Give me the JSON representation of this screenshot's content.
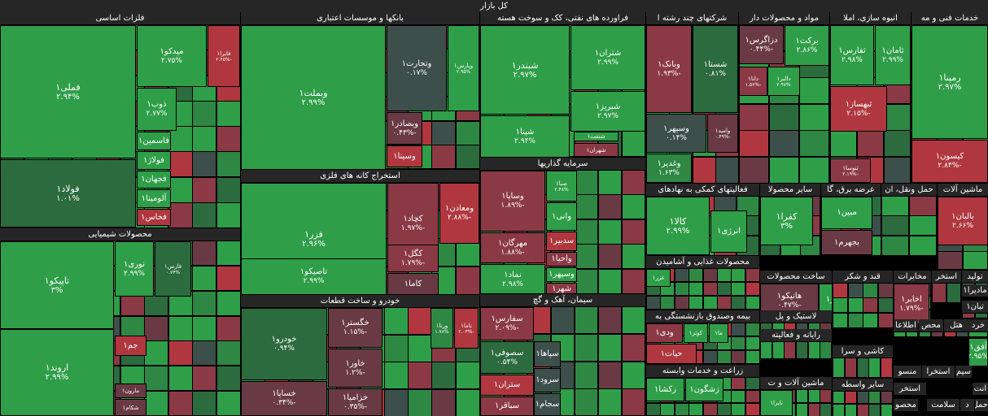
{
  "title": "کل بازار",
  "chart_data": {
    "type": "treemap",
    "colors": {
      "g3": "#2f9e48",
      "g2": "#2e8743",
      "g1": "#2c6b3e",
      "n0": "#3d4f4a",
      "r1": "#6a3a44",
      "r2": "#8b3a45",
      "r3": "#b0373f"
    },
    "sectors": [
      {
        "name": "خدمات فنی و مه",
        "tiles": [
          {
            "name": "رمپنا۱",
            "value": "۲.۹۷%",
            "c": "g3"
          },
          {
            "name": "کیسون۱",
            "value": "-۲.۸۴%",
            "c": "r3"
          }
        ]
      },
      {
        "name": "انبوه سازی، املا",
        "tiles": [
          {
            "name": "ثامان۱",
            "value": "۲.۹۹%",
            "c": "g3"
          },
          {
            "name": "ثفارس۱",
            "value": "۲.۹۸%",
            "c": "g3"
          },
          {
            "name": "ثبهساز۱",
            "value": "-۲.۱۵%",
            "c": "r3"
          },
          {
            "name": "ثنوسا۱",
            "value": "-۲.۱۹%",
            "c": "r2"
          }
        ]
      },
      {
        "name": "مواد و محصولات دار",
        "tiles": [
          {
            "name": "برکت۱",
            "value": "۲.۸۶%",
            "c": "g3"
          },
          {
            "name": "دزاگرس۱",
            "value": "-۰.۴۴%",
            "c": "r1"
          },
          {
            "name": "دالبر۱",
            "value": "۲.۹۷%",
            "c": "g3"
          },
          {
            "name": "دانا۱",
            "value": "-۱.۵۶%",
            "c": "r2"
          }
        ]
      },
      {
        "name": "شرکتهای چند رشته ا",
        "tiles": [
          {
            "name": "وبانک۱",
            "value": "-۱.۹۳%",
            "c": "r2"
          },
          {
            "name": "شستا۱",
            "value": "۰.۸۱%",
            "c": "g1"
          },
          {
            "name": "وسپهر۱",
            "value": "۰.۱۴%",
            "c": "n0"
          },
          {
            "name": "وامید۱",
            "value": "-۰.۴۹%",
            "c": "r1"
          },
          {
            "name": "وغدیر۱",
            "value": "۱.۶۳%",
            "c": "g2"
          }
        ]
      },
      {
        "name": "فراورده های نفتی، کک و سوخت هسته",
        "tiles": [
          {
            "name": "شبندر۱",
            "value": "۲.۹۷%",
            "c": "g3"
          },
          {
            "name": "شتران۱",
            "value": "۲.۹۹%",
            "c": "g3"
          },
          {
            "name": "شپنا۱",
            "value": "۲.۹۴%",
            "c": "g3"
          },
          {
            "name": "شبریز۱",
            "value": "۲.۹۷%",
            "c": "g3"
          },
          {
            "name": "شنفت۱",
            "value": "",
            "c": "g3"
          },
          {
            "name": "شهران۱",
            "value": "",
            "c": "r2"
          }
        ]
      },
      {
        "name": "بانکها و موسسات اعتباری",
        "tiles": [
          {
            "name": "وبملت۱",
            "value": "۲.۹۹%",
            "c": "g3"
          },
          {
            "name": "وتجارت۱",
            "value": "۰.۱۷%",
            "c": "n0"
          },
          {
            "name": "وپارس۱",
            "value": "۲.۹۵%",
            "c": "g3"
          },
          {
            "name": "وبصادر۱",
            "value": "-۰.۴۳%",
            "c": "r1"
          },
          {
            "name": "وسینا۱",
            "value": "",
            "c": "r3"
          }
        ]
      },
      {
        "name": "فلزات اساسی",
        "tiles": [
          {
            "name": "فملی۱",
            "value": "۲.۹۴%",
            "c": "g3"
          },
          {
            "name": "میدکو۱",
            "value": "۲.۷۵%",
            "c": "g3"
          },
          {
            "name": "فایرا۱",
            "value": "-۲.۴۵%",
            "c": "r3"
          },
          {
            "name": "ذوب۱",
            "value": "۲.۷۷%",
            "c": "g3"
          },
          {
            "name": "فاسمین۱",
            "value": "",
            "c": "g3"
          },
          {
            "name": "فولاژ۱",
            "value": "",
            "c": "g3"
          },
          {
            "name": "فجهان۱",
            "value": "",
            "c": "g3"
          },
          {
            "name": "فولاد۱",
            "value": "۱.۰۱%",
            "c": "g1"
          },
          {
            "name": "آلومینا۱",
            "value": "",
            "c": "g3"
          },
          {
            "name": "فخاس۱",
            "value": "",
            "c": "r3"
          }
        ]
      },
      {
        "name": "محصولات شیمیایی",
        "tiles": [
          {
            "name": "تاپیکو۱",
            "value": "۳%",
            "c": "g3"
          },
          {
            "name": "نوری۱",
            "value": "۲.۹۹%",
            "c": "g3"
          },
          {
            "name": "فارس۱",
            "value": "۰.۷۴%",
            "c": "g1"
          },
          {
            "name": "جم۱",
            "value": "",
            "c": "r3"
          },
          {
            "name": "اروند۱",
            "value": "۲.۹۹%",
            "c": "g3"
          },
          {
            "name": "مارون۱",
            "value": "",
            "c": "r1"
          },
          {
            "name": "شکام۱",
            "value": "",
            "c": "r1"
          }
        ]
      },
      {
        "name": "استخراج کانه های فلزی",
        "tiles": [
          {
            "name": "فزر۱",
            "value": "۲.۹۶%",
            "c": "g3"
          },
          {
            "name": "کچاد۱",
            "value": "-۱.۹۷%",
            "c": "r2"
          },
          {
            "name": "ومعادن۱",
            "value": "-۲.۸۸%",
            "c": "r3"
          },
          {
            "name": "کگل۱",
            "value": "-۱.۷۹%",
            "c": "r2"
          },
          {
            "name": "تاصیکو۱",
            "value": "۲.۹۹%",
            "c": "g3"
          },
          {
            "name": "کاما۱",
            "value": "",
            "c": "r1"
          }
        ]
      },
      {
        "name": "خودرو و ساخت قطعات",
        "tiles": [
          {
            "name": "خودرو۱",
            "value": "۰.۹۴%",
            "c": "g1"
          },
          {
            "name": "خگستر۱",
            "value": "-۱.۱۵%",
            "c": "r1"
          },
          {
            "name": "خاور۱",
            "value": "-۱.۲%",
            "c": "r1"
          },
          {
            "name": "خساپا۱",
            "value": "-۰.۳۴%",
            "c": "r1"
          },
          {
            "name": "خزامیا۱",
            "value": "-۰.۳۵%",
            "c": "r1"
          },
          {
            "name": "ورنا۱",
            "value": "۱.۷۸%",
            "c": "g2"
          },
          {
            "name": "ناما۱",
            "value": "-۲.۰۳%",
            "c": "r3"
          }
        ]
      },
      {
        "name": "سرمایه گذاریها",
        "tiles": [
          {
            "name": "وساپا۱",
            "value": "-۱.۸۹%",
            "c": "r2"
          },
          {
            "name": "صبا۱",
            "value": "۲.۴۸%",
            "c": "g3"
          },
          {
            "name": "مهرگان۱",
            "value": "-۱.۸۸%",
            "c": "r2"
          },
          {
            "name": "وانی۱",
            "value": "",
            "c": "g3"
          },
          {
            "name": "سدبیر۱",
            "value": "",
            "c": "r3"
          },
          {
            "name": "واحیا۱",
            "value": "",
            "c": "r2"
          },
          {
            "name": "نماد۱",
            "value": "۲.۹۸%",
            "c": "g3"
          },
          {
            "name": "وسپهر۱",
            "value": "",
            "c": "g3"
          },
          {
            "name": "شهر۱",
            "value": "",
            "c": "r2"
          }
        ]
      },
      {
        "name": "سیمان، آهک و گچ",
        "tiles": [
          {
            "name": "سفارس۱",
            "value": "-۲.۰۹%",
            "c": "r2"
          },
          {
            "name": "سصوفی۱",
            "value": "۰.۵۴%",
            "c": "g1"
          },
          {
            "name": "سپاها۱",
            "value": "",
            "c": "n0"
          },
          {
            "name": "ستران۱",
            "value": "",
            "c": "r3"
          },
          {
            "name": "سرود۱",
            "value": "",
            "c": "n0"
          },
          {
            "name": "سباقر۱",
            "value": "",
            "c": "r2"
          },
          {
            "name": "سجام۱",
            "value": "",
            "c": "n0"
          }
        ]
      },
      {
        "name": "فعالیتهای کمکی به نهادهای",
        "tiles": [
          {
            "name": "کالا۱",
            "value": "۲.۹۹%",
            "c": "g3"
          },
          {
            "name": "انرژی۱",
            "value": "",
            "c": "g3"
          }
        ]
      },
      {
        "name": "محصولات غذایی و آشامیدن",
        "tiles": [
          {
            "name": "غزر۱",
            "value": "",
            "c": "g3"
          }
        ]
      },
      {
        "name": "بیمه وصندوق بازنشستگی به",
        "tiles": [
          {
            "name": "ودی۱",
            "value": "",
            "c": "r2"
          },
          {
            "name": "کوثر۱",
            "value": "",
            "c": "g3"
          },
          {
            "name": "ما۱",
            "value": "",
            "c": "g3"
          },
          {
            "name": "حیات۱",
            "value": "",
            "c": "r3"
          }
        ]
      },
      {
        "name": "زراعت و خدمات وابسته",
        "tiles": [
          {
            "name": "زکشا۱",
            "value": "",
            "c": "g3"
          },
          {
            "name": "زشگون۱",
            "value": "",
            "c": "g3"
          }
        ]
      },
      {
        "name": "سایر محصولا",
        "tiles": [
          {
            "name": "کفرا۱",
            "value": "۳%",
            "c": "g3"
          }
        ]
      },
      {
        "name": "عرضه برق، گا",
        "tiles": [
          {
            "name": "مبین۱",
            "value": "",
            "c": "g3"
          },
          {
            "name": "بجهرم۱",
            "value": "",
            "c": "r1"
          }
        ]
      },
      {
        "name": "حمل ونقل، ان",
        "tiles": []
      },
      {
        "name": "ماشین آلات",
        "tiles": [
          {
            "name": "بالبان۱",
            "value": "۲.۶۶%",
            "c": "r3"
          }
        ]
      },
      {
        "name": "ساخت محصولات",
        "tiles": [
          {
            "name": "فقیرا۱",
            "value": "",
            "c": "r1"
          },
          {
            "name": "هانیکو۱",
            "value": "-۰.۴۷%",
            "c": "r1"
          },
          {
            "name": "فاذر۱",
            "value": "",
            "c": "g3"
          },
          {
            "name": "فاراک۱",
            "value": "",
            "c": "r3"
          }
        ]
      },
      {
        "name": "قند و شکر",
        "tiles": []
      },
      {
        "name": "لاستیک و پل",
        "tiles": []
      },
      {
        "name": "رایانه و فعالیته",
        "tiles": []
      },
      {
        "name": "کاشی و سرا",
        "tiles": []
      },
      {
        "name": "ماشین آلات و ت",
        "tiles": [
          {
            "name": "تایرا۱",
            "value": "",
            "c": "g3"
          }
        ]
      },
      {
        "name": "سایر واسطه",
        "tiles": []
      },
      {
        "name": "تولید",
        "tiles": []
      },
      {
        "name": "استخر",
        "tiles": []
      },
      {
        "name": "مخابرات",
        "tiles": [
          {
            "name": "اخابر۱",
            "value": "-۱.۷۹%",
            "c": "r2"
          },
          {
            "name": "حفاری۱",
            "value": "-۰.۷۷%",
            "c": "r1"
          }
        ]
      },
      {
        "name": "مادیرا۱",
        "tiles": []
      },
      {
        "name": "تبان۱",
        "tiles": []
      },
      {
        "name": "خرد",
        "tiles": []
      },
      {
        "name": "هتل",
        "tiles": []
      },
      {
        "name": "محص",
        "tiles": []
      },
      {
        "name": "اطلاعا",
        "tiles": []
      },
      {
        "name": "آفق۱",
        "tiles": [
          {
            "name": "آفق۱",
            "value": "۲.۹۵%",
            "c": "g3"
          }
        ]
      },
      {
        "name": "منسو",
        "tiles": []
      },
      {
        "name": "استخرا",
        "tiles": []
      },
      {
        "name": "سیم",
        "tiles": []
      },
      {
        "name": "استخر",
        "tiles": []
      },
      {
        "name": "محصو",
        "tiles": []
      },
      {
        "name": "سلامت",
        "tiles": []
      },
      {
        "name": "انت",
        "tiles": []
      },
      {
        "name": "د",
        "tiles": []
      },
      {
        "name": "حمل",
        "tiles": []
      }
    ]
  }
}
